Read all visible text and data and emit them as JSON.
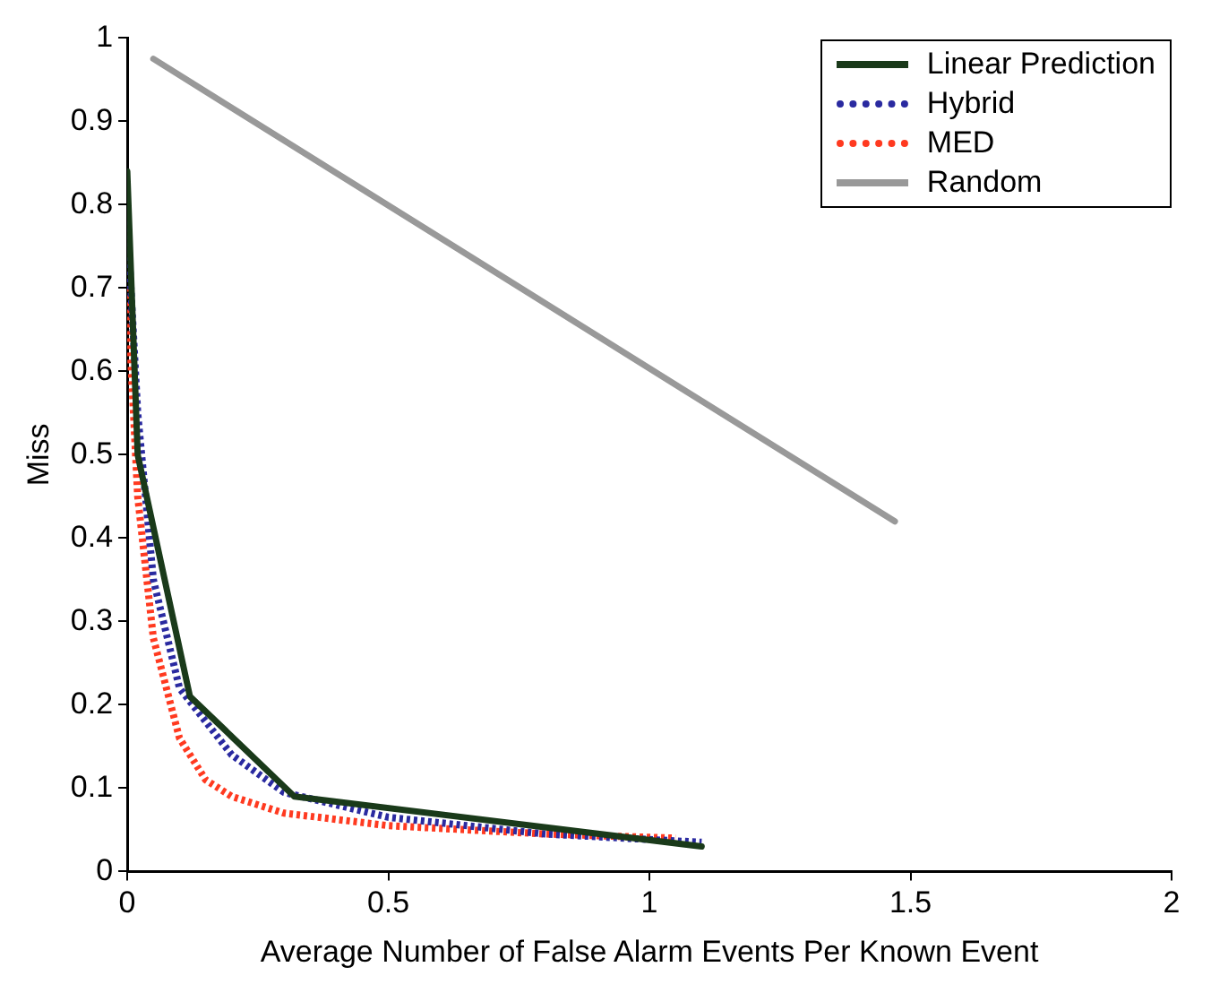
{
  "chart_data": {
    "type": "line",
    "xlabel": "Average Number of False Alarm Events Per Known Event",
    "ylabel": "Miss",
    "xlim": [
      0,
      2
    ],
    "xticks": [
      0,
      0.5,
      1,
      1.5,
      2
    ],
    "ylim": [
      0,
      1
    ],
    "yticks": [
      0,
      0.1,
      0.2,
      0.3,
      0.4,
      0.5,
      0.6,
      0.7,
      0.8,
      0.9,
      1
    ],
    "legend": "top right",
    "grid": false,
    "marker": "none",
    "series": [
      {
        "name": "Linear Prediction",
        "color": "#1a3a1a",
        "line_style": "solid",
        "x": [
          0,
          0.02,
          0.12,
          0.32,
          1.1
        ],
        "values": [
          0.84,
          0.5,
          0.21,
          0.09,
          0.03
        ]
      },
      {
        "name": "Hybrid",
        "color": "#2a2aa0",
        "line_style": "dotted",
        "x": [
          0,
          0.02,
          0.05,
          0.1,
          0.2,
          0.3,
          0.5,
          0.8,
          1.1
        ],
        "values": [
          0.78,
          0.55,
          0.35,
          0.22,
          0.14,
          0.095,
          0.065,
          0.045,
          0.035
        ]
      },
      {
        "name": "MED",
        "color": "#ff3a20",
        "line_style": "dotted",
        "x": [
          0,
          0.02,
          0.05,
          0.1,
          0.15,
          0.2,
          0.3,
          0.5,
          0.8,
          1.05
        ],
        "values": [
          0.7,
          0.45,
          0.28,
          0.16,
          0.11,
          0.09,
          0.07,
          0.055,
          0.045,
          0.04
        ]
      },
      {
        "name": "Random",
        "color": "#999999",
        "line_style": "solid",
        "x": [
          0.05,
          1.47
        ],
        "values": [
          0.975,
          0.42
        ]
      }
    ]
  }
}
